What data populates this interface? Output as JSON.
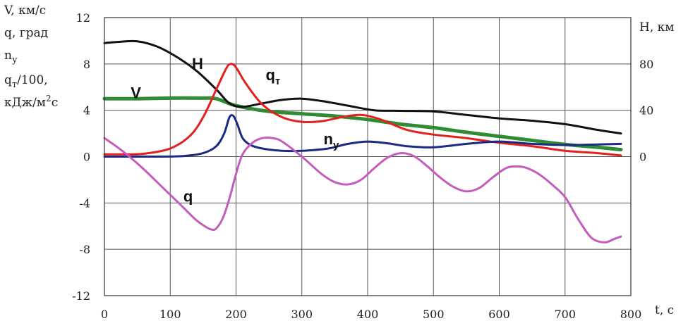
{
  "chart_data": {
    "type": "line",
    "x_label": "t, c",
    "x_ticks": [
      0,
      100,
      200,
      300,
      400,
      500,
      600,
      700,
      800
    ],
    "xlim": [
      0,
      800
    ],
    "y_left": {
      "labels": [
        "V, км/с",
        "q, град",
        "n",
        "у",
        "q",
        "т",
        "/100,",
        "кДж/м",
        "2",
        "с"
      ],
      "ticks": [
        12,
        8,
        4,
        0,
        -4,
        -8,
        -12
      ],
      "ylim": [
        -12,
        12
      ]
    },
    "y_right": {
      "label": "H, км",
      "ticks": [
        80,
        40,
        0
      ],
      "ylim": [
        -120,
        120
      ]
    },
    "grid": true,
    "series": [
      {
        "name": "V",
        "label": "V",
        "sublabel": "",
        "axis": "left",
        "color": "#2f8c33",
        "width": 5,
        "x": [
          0,
          50,
          100,
          150,
          170,
          200,
          250,
          300,
          350,
          400,
          450,
          500,
          550,
          600,
          650,
          700,
          750,
          785
        ],
        "y": [
          5.0,
          5.0,
          5.05,
          5.05,
          5.0,
          4.4,
          3.9,
          3.7,
          3.5,
          3.2,
          2.8,
          2.5,
          2.1,
          1.75,
          1.4,
          1.05,
          0.8,
          0.6
        ]
      },
      {
        "name": "H",
        "label": "H",
        "sublabel": "",
        "axis": "right",
        "color": "#111111",
        "width": 3,
        "x": [
          0,
          20,
          50,
          80,
          110,
          140,
          170,
          190,
          210,
          240,
          270,
          300,
          330,
          370,
          410,
          450,
          500,
          550,
          600,
          650,
          700,
          750,
          785
        ],
        "y": [
          98,
          99,
          99.5,
          95,
          86,
          74,
          58,
          46,
          43,
          46,
          49,
          50,
          48,
          44,
          40,
          39.5,
          39,
          36,
          33,
          31,
          28,
          23,
          20
        ]
      },
      {
        "name": "qt",
        "label": "q",
        "sublabel": "т",
        "axis": "left",
        "color": "#e3201b",
        "width": 3,
        "x": [
          0,
          30,
          60,
          100,
          130,
          150,
          170,
          185,
          192,
          200,
          215,
          240,
          270,
          300,
          330,
          360,
          390,
          420,
          460,
          500,
          550,
          600,
          650,
          700,
          750,
          785
        ],
        "y": [
          0.2,
          0.2,
          0.25,
          0.7,
          1.8,
          3.4,
          5.8,
          7.6,
          8.0,
          7.7,
          6.3,
          4.5,
          3.4,
          3.0,
          3.05,
          3.4,
          3.6,
          3.2,
          2.3,
          1.9,
          1.6,
          1.2,
          0.9,
          0.5,
          0.3,
          0.1
        ]
      },
      {
        "name": "ny",
        "label": "n",
        "sublabel": "у",
        "axis": "left",
        "color": "#1b2a84",
        "width": 3,
        "x": [
          0,
          40,
          80,
          120,
          150,
          170,
          182,
          190,
          196,
          202,
          210,
          222,
          240,
          270,
          300,
          340,
          370,
          400,
          430,
          460,
          500,
          550,
          600,
          650,
          700,
          750,
          785
        ],
        "y": [
          0,
          0,
          0,
          0.05,
          0.3,
          0.9,
          2.0,
          3.4,
          3.5,
          2.8,
          1.6,
          1.0,
          0.7,
          0.5,
          0.5,
          0.7,
          1.1,
          1.3,
          1.15,
          0.9,
          0.8,
          1.1,
          1.3,
          1.1,
          1.0,
          1.05,
          1.1
        ]
      },
      {
        "name": "q",
        "label": "q",
        "sublabel": "",
        "axis": "left",
        "color": "#c45cbd",
        "width": 3,
        "x": [
          0,
          20,
          40,
          60,
          80,
          100,
          120,
          140,
          155,
          163,
          170,
          180,
          190,
          200,
          210,
          225,
          240,
          255,
          270,
          300,
          330,
          350,
          370,
          390,
          410,
          430,
          450,
          470,
          490,
          510,
          530,
          550,
          570,
          590,
          610,
          625,
          640,
          660,
          680,
          700,
          720,
          740,
          760,
          775,
          785
        ],
        "y": [
          1.6,
          0.8,
          -0.1,
          -1.1,
          -2.2,
          -3.3,
          -4.4,
          -5.5,
          -6.1,
          -6.3,
          -6.2,
          -5.3,
          -3.6,
          -1.5,
          0.2,
          1.2,
          1.6,
          1.6,
          1.3,
          0.0,
          -1.5,
          -2.2,
          -2.4,
          -2.0,
          -1.0,
          -0.1,
          0.3,
          0.05,
          -0.8,
          -1.8,
          -2.6,
          -3.0,
          -2.7,
          -1.8,
          -1.0,
          -0.85,
          -0.95,
          -1.5,
          -2.4,
          -3.5,
          -5.4,
          -7.0,
          -7.4,
          -7.1,
          -6.9
        ]
      }
    ],
    "annotations": [
      {
        "series": "H",
        "text": "H",
        "sub": "",
        "x": 133,
        "y": 7.55
      },
      {
        "series": "V",
        "text": "V",
        "sub": "",
        "x": 40,
        "y": 5.05
      },
      {
        "series": "qt",
        "text": "q",
        "sub": "т",
        "x": 245,
        "y": 6.6
      },
      {
        "series": "ny",
        "text": "n",
        "sub": "у",
        "x": 333,
        "y": 1.05
      },
      {
        "series": "q",
        "text": "q",
        "sub": "",
        "x": 120,
        "y": -3.9
      }
    ]
  }
}
